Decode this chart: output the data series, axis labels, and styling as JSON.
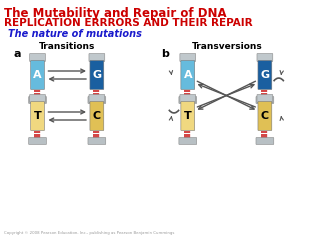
{
  "title1": "The Mutability and Repair of DNA",
  "title2": "REPLICATION ERRRORS AND THEIR REPAIR",
  "subtitle": "The nature of mutations",
  "label_a": "Transitions",
  "label_b": "Transversions",
  "letter_a": "a",
  "letter_b": "b",
  "bg_color": "#ffffff",
  "title1_color": "#cc0000",
  "title2_color": "#cc0000",
  "subtitle_color": "#1a1acc",
  "label_color": "#000000",
  "tube_A_color": "#66bbdd",
  "tube_G_color": "#1a5fa0",
  "tube_T_color": "#f0d880",
  "tube_C_color": "#e0c055",
  "cap_color": "#c0c8cc",
  "base_color": "#b8c0c4",
  "connector_color": "#cc2222",
  "arrow_color": "#555555",
  "copyright": "Copyright © 2008 Pearson Education, Inc., publishing as Pearson Benjamin Cummings"
}
